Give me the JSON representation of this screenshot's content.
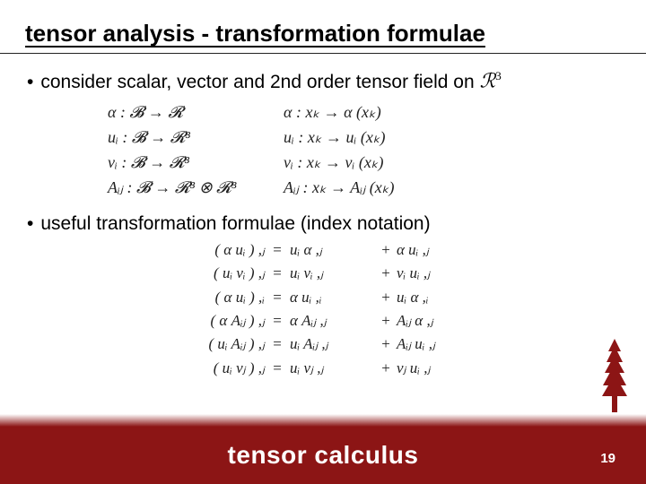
{
  "title": "tensor analysis - transformation formulae",
  "bullets": {
    "b1_text": "consider scalar, vector and 2nd order tensor field on",
    "b2_text": "useful transformation formulae (index notation)"
  },
  "decl": {
    "r1l": "α :   𝓑 → 𝓡",
    "r1r": "α :   xₖ → α     (xₖ)",
    "r2l": "uᵢ :   𝓑 → 𝓡³",
    "r2r": "uᵢ :   xₖ → uᵢ   (xₖ)",
    "r3l": "vᵢ :   𝓑 → 𝓡³",
    "r3r": "vᵢ :   xₖ → vᵢ   (xₖ)",
    "r4l": "Aᵢⱼ :   𝓑 → 𝓡³ ⊗ 𝓡³",
    "r4r": "Aᵢⱼ :   xₖ → Aᵢⱼ (xₖ)"
  },
  "formulae": [
    {
      "lhs": "( α uᵢ ) ,ⱼ",
      "t1": "uᵢ α ,ⱼ",
      "t2": "α uᵢ ,ⱼ"
    },
    {
      "lhs": "( uᵢ vᵢ ) ,ⱼ",
      "t1": "uᵢ vᵢ ,ⱼ",
      "t2": "vᵢ uᵢ ,ⱼ"
    },
    {
      "lhs": "( α uᵢ ) ,ᵢ",
      "t1": "α uᵢ ,ᵢ",
      "t2": "uᵢ α ,ᵢ"
    },
    {
      "lhs": "( α Aᵢⱼ ) ,ⱼ",
      "t1": "α Aᵢⱼ ,ⱼ",
      "t2": "Aᵢⱼ α ,ⱼ"
    },
    {
      "lhs": "( uᵢ Aᵢⱼ ) ,ⱼ",
      "t1": "uᵢ Aᵢⱼ ,ⱼ",
      "t2": "Aᵢⱼ uᵢ ,ⱼ"
    },
    {
      "lhs": "( uᵢ vⱼ ) ,ⱼ",
      "t1": "uᵢ vⱼ ,ⱼ",
      "t2": "vⱼ uᵢ ,ⱼ"
    }
  ],
  "footer": {
    "title": "tensor calculus",
    "page": "19"
  },
  "colors": {
    "brand": "#8c1515",
    "text": "#000000",
    "bg": "#ffffff"
  }
}
